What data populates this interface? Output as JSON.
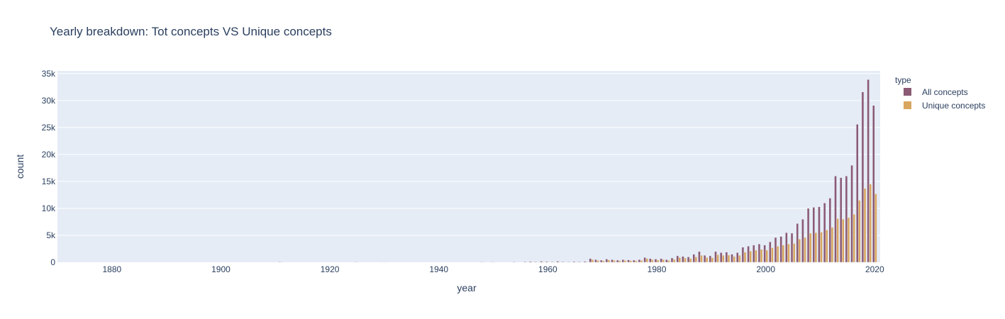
{
  "chart_data": {
    "type": "bar",
    "title": "Yearly breakdown: Tot concepts VS Unique concepts",
    "xlabel": "year",
    "ylabel": "count",
    "xlim": [
      1870,
      2021
    ],
    "ylim": [
      0,
      35500
    ],
    "x_ticks": [
      1880,
      1900,
      1920,
      1940,
      1960,
      1980,
      2000,
      2020
    ],
    "x_tick_labels": [
      "1880",
      "1900",
      "1920",
      "1940",
      "1960",
      "1980",
      "2000",
      "2020"
    ],
    "y_ticks": [
      0,
      5000,
      10000,
      15000,
      20000,
      25000,
      30000,
      35000
    ],
    "y_tick_labels": [
      "0",
      "5k",
      "10k",
      "15k",
      "20k",
      "25k",
      "30k",
      "35k"
    ],
    "grid": true,
    "barmode": "group",
    "legend": {
      "title": "type",
      "placement": "top-right"
    },
    "x": [
      1911,
      1925,
      1930,
      1948,
      1950,
      1954,
      1956,
      1957,
      1958,
      1959,
      1960,
      1961,
      1962,
      1963,
      1964,
      1965,
      1966,
      1967,
      1968,
      1969,
      1970,
      1971,
      1972,
      1973,
      1974,
      1975,
      1976,
      1977,
      1978,
      1979,
      1980,
      1981,
      1982,
      1983,
      1984,
      1985,
      1986,
      1987,
      1988,
      1989,
      1990,
      1991,
      1992,
      1993,
      1994,
      1995,
      1996,
      1997,
      1998,
      1999,
      2000,
      2001,
      2002,
      2003,
      2004,
      2005,
      2006,
      2007,
      2008,
      2009,
      2010,
      2011,
      2012,
      2013,
      2014,
      2015,
      2016,
      2017,
      2018,
      2019,
      2020
    ],
    "series": [
      {
        "name": "All concepts",
        "color": "#8b5a75",
        "values": [
          100,
          80,
          60,
          80,
          80,
          100,
          120,
          150,
          120,
          200,
          150,
          120,
          200,
          120,
          100,
          150,
          120,
          180,
          700,
          500,
          400,
          600,
          500,
          400,
          500,
          450,
          400,
          500,
          900,
          700,
          600,
          700,
          500,
          800,
          1200,
          1100,
          1000,
          1500,
          2000,
          1300,
          1200,
          2000,
          1800,
          1900,
          1500,
          1800,
          2800,
          3000,
          3200,
          3400,
          3200,
          3800,
          4600,
          4800,
          5500,
          5400,
          7200,
          8000,
          10000,
          10200,
          10300,
          11000,
          11900,
          16000,
          15700,
          16000,
          18000,
          25600,
          31600,
          33900,
          29100
        ]
      },
      {
        "name": "Unique concepts",
        "color": "#d9a65f",
        "values": [
          50,
          40,
          30,
          40,
          40,
          50,
          60,
          80,
          60,
          100,
          80,
          60,
          100,
          60,
          50,
          80,
          60,
          90,
          500,
          350,
          280,
          420,
          350,
          280,
          350,
          320,
          280,
          350,
          700,
          500,
          430,
          500,
          350,
          550,
          900,
          800,
          700,
          1000,
          1300,
          900,
          850,
          1400,
          1300,
          1350,
          1100,
          1300,
          1900,
          2100,
          2250,
          2400,
          2250,
          2700,
          3000,
          3200,
          3400,
          3500,
          4300,
          4600,
          5400,
          5500,
          5600,
          6000,
          6500,
          8100,
          8000,
          8300,
          8900,
          11500,
          13700,
          14500,
          12700
        ]
      }
    ]
  }
}
